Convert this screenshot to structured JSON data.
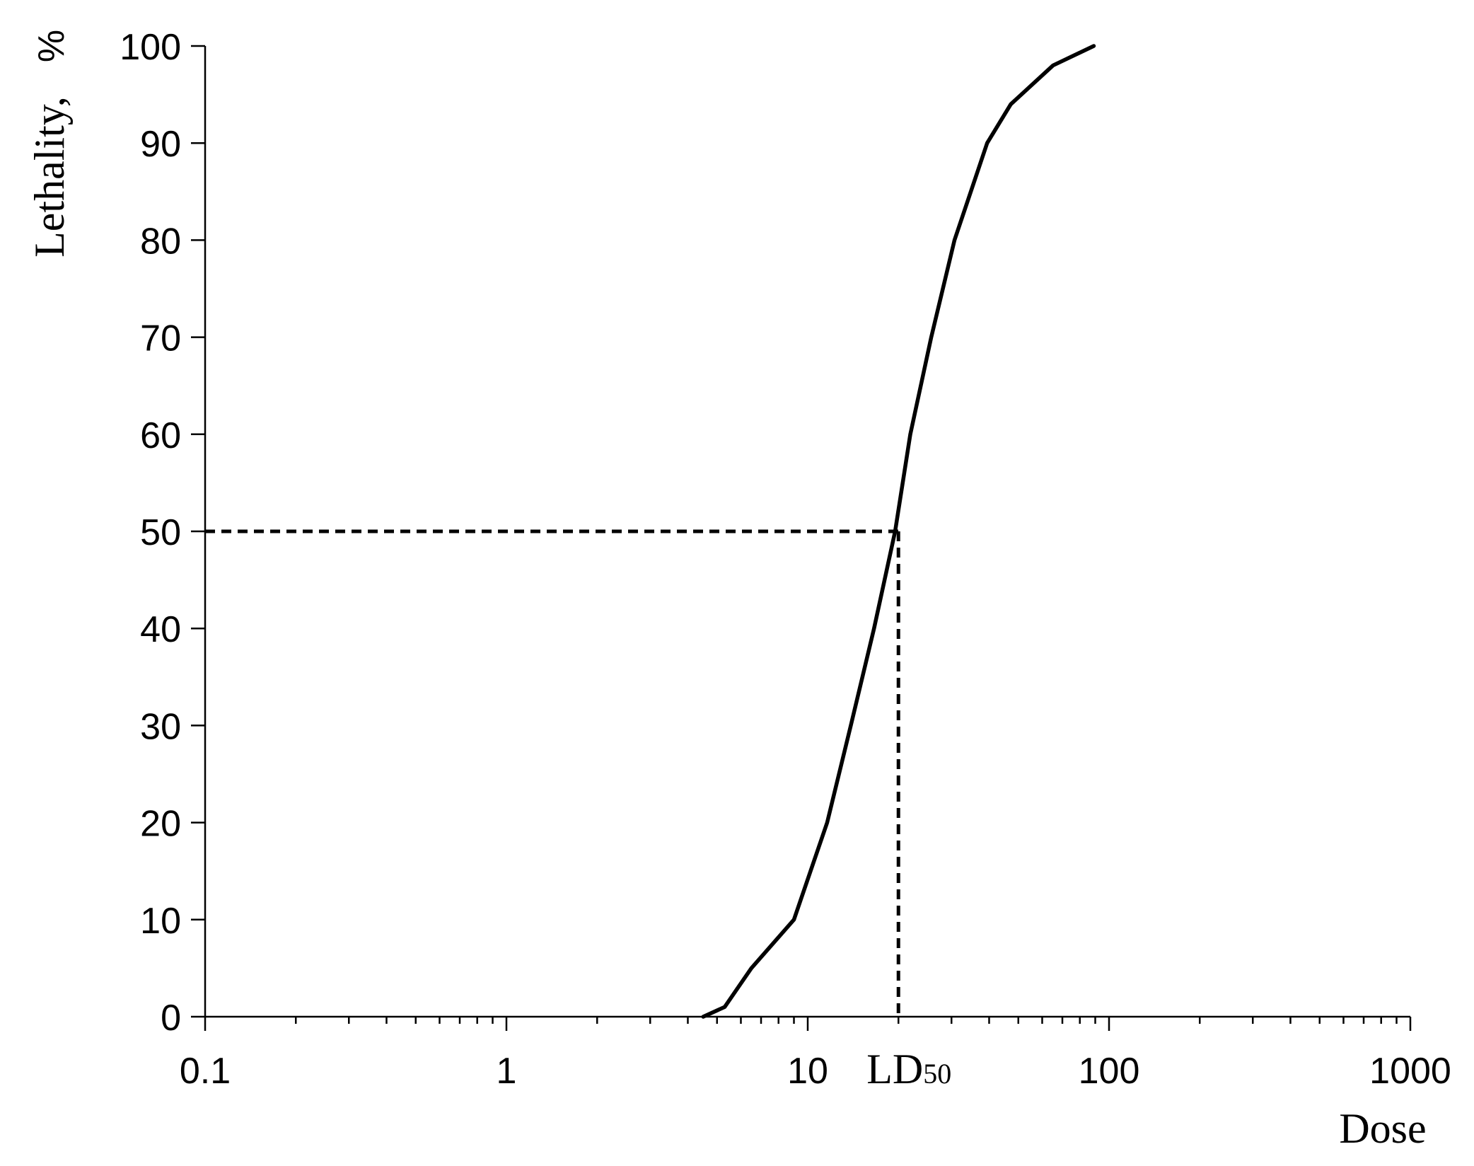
{
  "chart_data": {
    "type": "line",
    "xscale": "log",
    "minor_ticks": true,
    "ylabel": "Lethality,",
    "yunit": "%",
    "xlabel": "Dose",
    "x": [
      4.5,
      5.3,
      6.5,
      9.0,
      11.6,
      13.9,
      16.6,
      19.5,
      21.9,
      25.7,
      30.7,
      39.4,
      47.2,
      65.2,
      89
    ],
    "values": [
      0,
      1,
      5,
      10,
      20,
      30,
      40,
      50,
      60,
      70,
      80,
      90,
      94,
      98,
      100
    ],
    "color": "#000000",
    "xlim": [
      0.1,
      1000
    ],
    "xticks": [
      0.1,
      1,
      10,
      100,
      1000
    ],
    "ylim": [
      0,
      100
    ],
    "yticks": [
      0,
      10,
      20,
      30,
      40,
      50,
      60,
      70,
      80,
      90,
      100
    ],
    "annotation": {
      "text": "LD",
      "subscript": "50",
      "x": 20,
      "y": 50
    }
  }
}
